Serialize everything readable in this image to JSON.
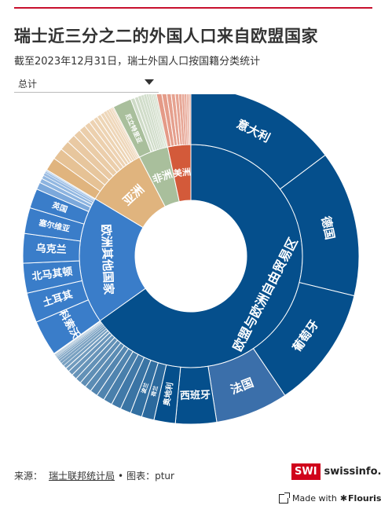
{
  "header": {
    "title": "瑞士近三分之二的外国人口来自欧盟国家",
    "subtitle": "截至2023年12月31日，瑞士外国人口按国籍分类统计"
  },
  "filter": {
    "selected": "总计"
  },
  "footer": {
    "source_label": "来源：",
    "source_name": "瑞士联邦统计局",
    "chart_credit": "图表：ptur",
    "logo_badge": "SWI",
    "logo_text": "swissinfo.ch",
    "made_with": "Made with",
    "flourish": "Flourish"
  },
  "colors": {
    "eu": "#054f8c",
    "other_europe": "#3a7dc9",
    "asia": "#e0b47e",
    "africa": "#a9bf9c",
    "americas": "#d35a3a",
    "france": "#3b6faa"
  },
  "chart_data": {
    "type": "sunburst",
    "inner": [
      {
        "name": "欧盟与欧洲自由贸易区",
        "value": 1520,
        "color": "#054f8c"
      },
      {
        "name": "欧洲其他国家",
        "value": 430,
        "color": "#3a7dc9"
      },
      {
        "name": "亚洲",
        "value": 205,
        "color": "#e0b47e"
      },
      {
        "name": "非洲",
        "value": 100,
        "color": "#a9bf9c"
      },
      {
        "name": "美洲",
        "value": 78,
        "color": "#d35a3a"
      }
    ],
    "outer": [
      {
        "parent": 0,
        "name": "意大利",
        "value": 344
      },
      {
        "parent": 0,
        "name": "德国",
        "value": 328
      },
      {
        "parent": 0,
        "name": "葡萄牙",
        "value": 274
      },
      {
        "parent": 0,
        "name": "法国",
        "value": 163,
        "color": "#3b6faa"
      },
      {
        "parent": 0,
        "name": "西班牙",
        "value": 92
      },
      {
        "parent": 0,
        "name": "奥地利",
        "value": 48
      },
      {
        "parent": 0,
        "name": "荷兰",
        "value": 28
      },
      {
        "parent": 0,
        "name": "波兰",
        "value": 26
      },
      {
        "parent": 0,
        "name": "",
        "value": 24
      },
      {
        "parent": 0,
        "name": "",
        "value": 22
      },
      {
        "parent": 0,
        "name": "",
        "value": 20
      },
      {
        "parent": 0,
        "name": "",
        "value": 18
      },
      {
        "parent": 0,
        "name": "",
        "value": 17
      },
      {
        "parent": 0,
        "name": "",
        "value": 15
      },
      {
        "parent": 0,
        "name": "",
        "value": 14
      },
      {
        "parent": 0,
        "name": "",
        "value": 13
      },
      {
        "parent": 0,
        "name": "",
        "value": 12
      },
      {
        "parent": 0,
        "name": "",
        "value": 11
      },
      {
        "parent": 0,
        "name": "",
        "value": 9
      },
      {
        "parent": 0,
        "name": "",
        "value": 8
      },
      {
        "parent": 0,
        "name": "",
        "value": 7
      },
      {
        "parent": 0,
        "name": "",
        "value": 6
      },
      {
        "parent": 0,
        "name": "",
        "value": 5
      },
      {
        "parent": 0,
        "name": "",
        "value": 4
      },
      {
        "parent": 0,
        "name": "",
        "value": 3
      },
      {
        "parent": 0,
        "name": "",
        "value": 2
      },
      {
        "parent": 0,
        "name": "",
        "value": 2
      },
      {
        "parent": 0,
        "name": "",
        "value": 2
      },
      {
        "parent": 0,
        "name": "",
        "value": 1
      },
      {
        "parent": 0,
        "name": "",
        "value": 1
      },
      {
        "parent": 0,
        "name": "",
        "value": 1
      },
      {
        "parent": 0,
        "name": "",
        "value": 1
      },
      {
        "parent": 0,
        "name": "",
        "value": 1
      },
      {
        "parent": 1,
        "name": "科索沃",
        "value": 80
      },
      {
        "parent": 1,
        "name": "土耳其",
        "value": 67
      },
      {
        "parent": 1,
        "name": "北马其顿",
        "value": 67
      },
      {
        "parent": 1,
        "name": "乌克兰",
        "value": 66
      },
      {
        "parent": 1,
        "name": "塞尔维亚",
        "value": 58
      },
      {
        "parent": 1,
        "name": "英国",
        "value": 44
      },
      {
        "parent": 1,
        "name": "",
        "value": 16
      },
      {
        "parent": 1,
        "name": "",
        "value": 10
      },
      {
        "parent": 1,
        "name": "",
        "value": 8
      },
      {
        "parent": 1,
        "name": "",
        "value": 6
      },
      {
        "parent": 1,
        "name": "",
        "value": 4
      },
      {
        "parent": 1,
        "name": "",
        "value": 2
      },
      {
        "parent": 1,
        "name": "",
        "value": 2
      },
      {
        "parent": 2,
        "name": "",
        "value": 30
      },
      {
        "parent": 2,
        "name": "",
        "value": 26
      },
      {
        "parent": 2,
        "name": "",
        "value": 22
      },
      {
        "parent": 2,
        "name": "",
        "value": 19
      },
      {
        "parent": 2,
        "name": "",
        "value": 17
      },
      {
        "parent": 2,
        "name": "",
        "value": 15
      },
      {
        "parent": 2,
        "name": "",
        "value": 13
      },
      {
        "parent": 2,
        "name": "",
        "value": 11
      },
      {
        "parent": 2,
        "name": "",
        "value": 10
      },
      {
        "parent": 2,
        "name": "",
        "value": 9
      },
      {
        "parent": 2,
        "name": "",
        "value": 8
      },
      {
        "parent": 2,
        "name": "",
        "value": 7
      },
      {
        "parent": 2,
        "name": "",
        "value": 6
      },
      {
        "parent": 2,
        "name": "",
        "value": 5
      },
      {
        "parent": 2,
        "name": "",
        "value": 4
      },
      {
        "parent": 2,
        "name": "",
        "value": 3
      },
      {
        "parent": 3,
        "name": "厄立特里亚",
        "value": 42
      },
      {
        "parent": 3,
        "name": "",
        "value": 9
      },
      {
        "parent": 3,
        "name": "",
        "value": 8
      },
      {
        "parent": 3,
        "name": "",
        "value": 7
      },
      {
        "parent": 3,
        "name": "",
        "value": 6
      },
      {
        "parent": 3,
        "name": "",
        "value": 6
      },
      {
        "parent": 3,
        "name": "",
        "value": 5
      },
      {
        "parent": 3,
        "name": "",
        "value": 5
      },
      {
        "parent": 3,
        "name": "",
        "value": 4
      },
      {
        "parent": 3,
        "name": "",
        "value": 4
      },
      {
        "parent": 3,
        "name": "",
        "value": 4
      },
      {
        "parent": 4,
        "name": "",
        "value": 12
      },
      {
        "parent": 4,
        "name": "",
        "value": 11
      },
      {
        "parent": 4,
        "name": "",
        "value": 10
      },
      {
        "parent": 4,
        "name": "",
        "value": 9
      },
      {
        "parent": 4,
        "name": "",
        "value": 8
      },
      {
        "parent": 4,
        "name": "",
        "value": 7
      },
      {
        "parent": 4,
        "name": "",
        "value": 6
      },
      {
        "parent": 4,
        "name": "",
        "value": 5
      },
      {
        "parent": 4,
        "name": "",
        "value": 4
      },
      {
        "parent": 4,
        "name": "",
        "value": 3
      },
      {
        "parent": 4,
        "name": "",
        "value": 3
      }
    ]
  }
}
